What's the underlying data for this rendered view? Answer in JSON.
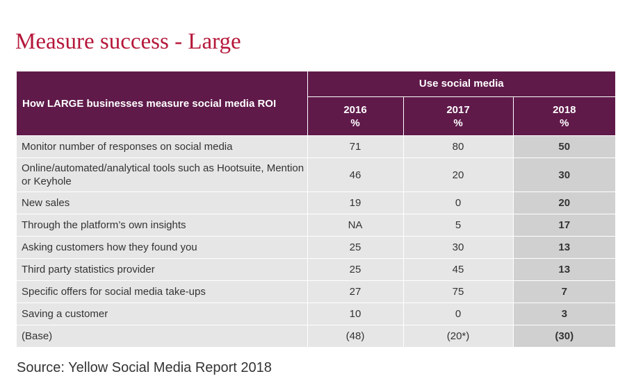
{
  "title": "Measure success - Large",
  "source": "Source: Yellow Social Media Report 2018",
  "chart_data": {
    "type": "table",
    "row_header": "How LARGE businesses measure social media ROI",
    "group_header": "Use social media",
    "columns": [
      {
        "year": "2016",
        "unit": "%"
      },
      {
        "year": "2017",
        "unit": "%"
      },
      {
        "year": "2018",
        "unit": "%"
      }
    ],
    "rows": [
      {
        "label": "Monitor number of responses on social media",
        "values": [
          "71",
          "80",
          "50"
        ]
      },
      {
        "label": "Online/automated/analytical tools such as Hootsuite, Mention or Keyhole",
        "values": [
          "46",
          "20",
          "30"
        ]
      },
      {
        "label": "New sales",
        "values": [
          "19",
          "0",
          "20"
        ]
      },
      {
        "label": "Through the platform’s own insights",
        "values": [
          "NA",
          "5",
          "17"
        ]
      },
      {
        "label": "Asking customers how they found you",
        "values": [
          "25",
          "30",
          "13"
        ]
      },
      {
        "label": "Third party statistics provider",
        "values": [
          "25",
          "45",
          "13"
        ]
      },
      {
        "label": "Specific offers for social media take-ups",
        "values": [
          "27",
          "75",
          "7"
        ]
      },
      {
        "label": "Saving a customer",
        "values": [
          "10",
          "0",
          "3"
        ]
      },
      {
        "label": "(Base)",
        "values": [
          "(48)",
          "(20*)",
          "(30)"
        ]
      }
    ],
    "colors": {
      "title": "#b5173a",
      "header_bg": "#5f1a4a",
      "cell_bg": "#e6e6e6",
      "highlight_bg": "#d0d0d0"
    }
  }
}
